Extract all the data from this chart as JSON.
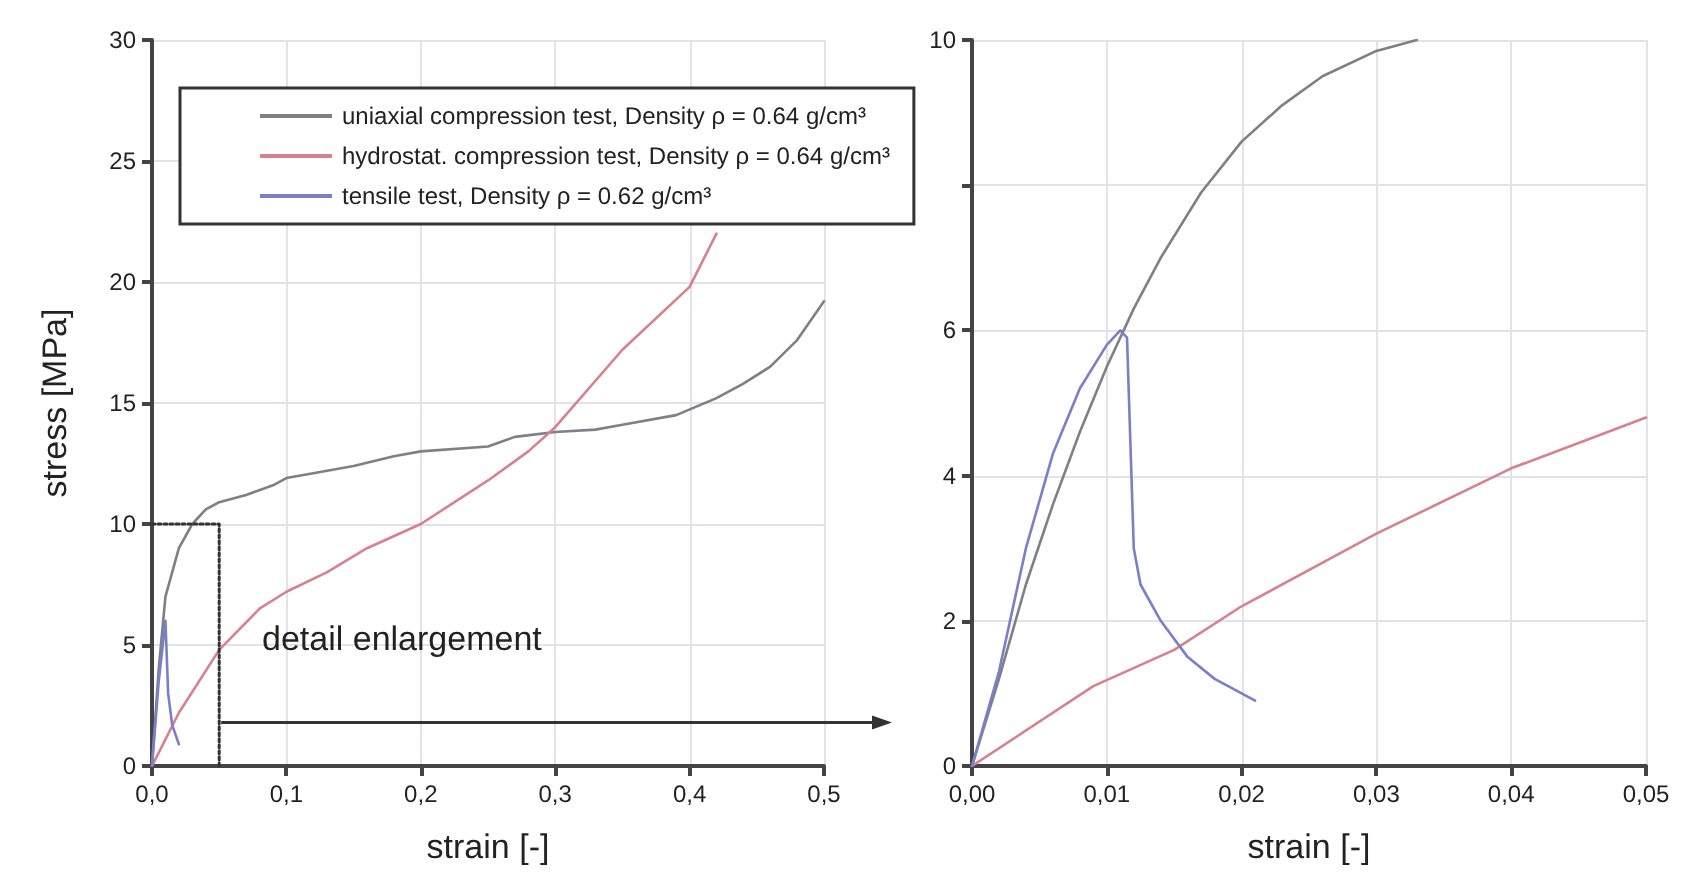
{
  "chart_data": [
    {
      "type": "line",
      "xlabel": "strain [-]",
      "ylabel": "stress [MPa]",
      "legend": "top",
      "grid": true,
      "marker": "none",
      "line_style": "solid",
      "annotations": [
        "detail enlargement"
      ],
      "xlim": [
        0,
        0.5
      ],
      "xticks": [
        {
          "value": 0,
          "label": "0,0"
        },
        {
          "value": 0.1,
          "label": "0,1"
        },
        {
          "value": 0.2,
          "label": "0,2"
        },
        {
          "value": 0.3,
          "label": "0,3"
        },
        {
          "value": 0.4,
          "label": "0,4"
        },
        {
          "value": 0.5,
          "label": "0,5"
        }
      ],
      "ylim": [
        0,
        30
      ],
      "yticks": [
        0,
        5,
        10,
        15,
        20,
        25,
        30
      ],
      "series": [
        {
          "name": "uniaxial compression test, Density ρ = 0.64 g/cm³",
          "color": "#7f7f86",
          "x": [
            0,
            0.005,
            0.01,
            0.02,
            0.03,
            0.04,
            0.05,
            0.07,
            0.09,
            0.1,
            0.12,
            0.15,
            0.18,
            0.2,
            0.25,
            0.27,
            0.3,
            0.33,
            0.35,
            0.39,
            0.42,
            0.44,
            0.46,
            0.48,
            0.5
          ],
          "values": [
            0,
            4,
            7,
            9,
            10,
            10.6,
            10.9,
            11.2,
            11.6,
            11.9,
            12.1,
            12.4,
            12.8,
            13,
            13.2,
            13.6,
            13.8,
            13.9,
            14.1,
            14.5,
            15.2,
            15.8,
            16.5,
            17.6,
            19.2
          ]
        },
        {
          "name": "hydrostat. compression test, Density ρ = 0.64 g/cm³",
          "color": "#d9808f",
          "x": [
            0,
            0.02,
            0.05,
            0.08,
            0.1,
            0.13,
            0.16,
            0.2,
            0.25,
            0.28,
            0.3,
            0.35,
            0.4,
            0.42
          ],
          "values": [
            0,
            2.2,
            4.8,
            6.5,
            7.2,
            8,
            9,
            10,
            11.8,
            13,
            14,
            17.2,
            19.8,
            22
          ]
        },
        {
          "name": "tensile test, Density ρ = 0.62 g/cm³",
          "color": "#7a7fc8",
          "x": [
            0,
            0.005,
            0.01,
            0.012,
            0.015,
            0.02
          ],
          "values": [
            0,
            3.5,
            6,
            3,
            1.7,
            0.9
          ]
        },
        {
          "color": "#333333",
          "line_style": "dotted",
          "x": [
            0,
            0.05,
            0.05
          ],
          "values": [
            10,
            10,
            0
          ]
        }
      ]
    },
    {
      "type": "line",
      "xlabel": "strain [-]",
      "grid": true,
      "marker": "none",
      "line_style": "solid",
      "xlim": [
        0,
        0.05
      ],
      "xticks": [
        {
          "value": 0,
          "label": "0,00"
        },
        {
          "value": 0.01,
          "label": "0,01"
        },
        {
          "value": 0.02,
          "label": "0,02"
        },
        {
          "value": 0.03,
          "label": "0,03"
        },
        {
          "value": 0.04,
          "label": "0,04"
        },
        {
          "value": 0.05,
          "label": "0,05"
        }
      ],
      "ylim": [
        0,
        10
      ],
      "yticks": [
        0,
        2,
        4,
        6,
        {
          "value": 8,
          "label": null
        },
        10
      ],
      "series": [
        {
          "color": "#7f7f86",
          "x": [
            0,
            0.002,
            0.004,
            0.006,
            0.008,
            0.01,
            0.012,
            0.014,
            0.017,
            0.02,
            0.023,
            0.026,
            0.03,
            0.033
          ],
          "values": [
            0,
            1.2,
            2.5,
            3.6,
            4.6,
            5.5,
            6.3,
            7,
            7.9,
            8.6,
            9.1,
            9.5,
            9.85,
            10
          ]
        },
        {
          "color": "#d9808f",
          "x": [
            0,
            0.009,
            0.015,
            0.02,
            0.03,
            0.04,
            0.045,
            0.05
          ],
          "values": [
            0,
            1.1,
            1.6,
            2.2,
            3.2,
            4.1,
            4.45,
            4.8
          ]
        },
        {
          "color": "#7a7fc8",
          "x": [
            0,
            0.002,
            0.004,
            0.006,
            0.008,
            0.01,
            0.011,
            0.0115,
            0.012,
            0.0125,
            0.014,
            0.016,
            0.018,
            0.021
          ],
          "values": [
            0,
            1.3,
            3,
            4.3,
            5.2,
            5.8,
            6,
            5.9,
            3,
            2.5,
            2,
            1.5,
            1.2,
            0.9
          ]
        }
      ]
    }
  ]
}
